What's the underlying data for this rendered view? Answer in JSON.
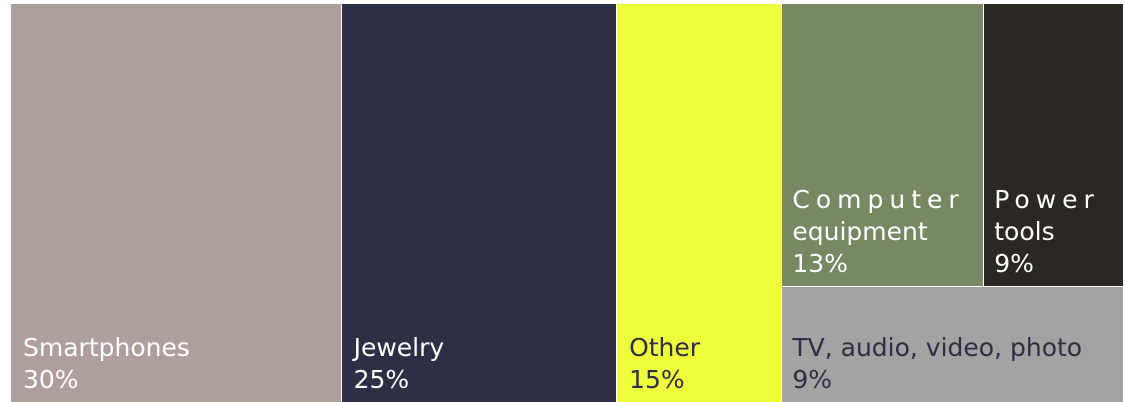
{
  "chart_data": {
    "type": "treemap",
    "title": "",
    "items": [
      {
        "name": "Smartphones",
        "value": 30,
        "label": "30%",
        "color": "#ae9f9d",
        "text_color": "#ffffff"
      },
      {
        "name": "Jewelry",
        "value": 25,
        "label": "25%",
        "color": "#2d2f44",
        "text_color": "#ffffff"
      },
      {
        "name": "Other",
        "value": 15,
        "label": "15%",
        "color": "#eefe3a",
        "text_color": "#2d2f44"
      },
      {
        "name": "Computer equipment",
        "value": 13,
        "label": "13%",
        "color": "#778963",
        "text_color": "#ffffff"
      },
      {
        "name": "Power tools",
        "value": 9,
        "label": "9%",
        "color": "#2b2824",
        "text_color": "#ffffff"
      },
      {
        "name": "TV, audio, video, photo",
        "value": 9,
        "label": "9%",
        "color": "#a3a3a3",
        "text_color": "#2d2f44"
      }
    ]
  }
}
